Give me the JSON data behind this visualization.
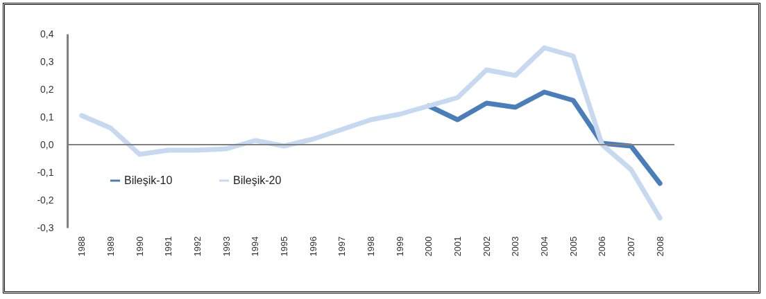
{
  "chart_data": {
    "type": "line",
    "categories": [
      "1988",
      "1989",
      "1990",
      "1991",
      "1992",
      "1993",
      "1994",
      "1995",
      "1996",
      "1997",
      "1998",
      "1999",
      "2000",
      "2001",
      "2002",
      "2003",
      "2004",
      "2005",
      "2006",
      "2007",
      "2008"
    ],
    "series": [
      {
        "name": "Bileşik-10",
        "color": "#4a7ebb",
        "values": [
          null,
          null,
          null,
          null,
          null,
          null,
          null,
          null,
          null,
          null,
          null,
          null,
          0.14,
          0.09,
          0.15,
          0.135,
          0.19,
          0.16,
          0.005,
          -0.005,
          -0.14
        ]
      },
      {
        "name": "Bileşik-20",
        "color": "#c6d9f0",
        "values": [
          0.105,
          0.06,
          -0.035,
          -0.02,
          -0.02,
          -0.015,
          0.015,
          -0.005,
          0.02,
          0.055,
          0.09,
          0.11,
          0.14,
          0.17,
          0.27,
          0.25,
          0.35,
          0.32,
          0.0,
          -0.09,
          -0.265
        ]
      }
    ],
    "ylim": [
      -0.3,
      0.4
    ],
    "yticks": [
      {
        "value": -0.3,
        "label": "-0,3"
      },
      {
        "value": -0.2,
        "label": "-0,2"
      },
      {
        "value": -0.1,
        "label": "-0,1"
      },
      {
        "value": 0,
        "label": "0,0"
      },
      {
        "value": 0.1,
        "label": "0,1"
      },
      {
        "value": 0.2,
        "label": "0,2"
      },
      {
        "value": 0.3,
        "label": "0,3"
      },
      {
        "value": 0.4,
        "label": "0,4"
      }
    ],
    "ref_lines": [
      {
        "axis": "y",
        "value": 0,
        "color": "#808080"
      }
    ],
    "grid": false,
    "legend": "bottom left",
    "marker": "none",
    "line_style": "solid"
  }
}
